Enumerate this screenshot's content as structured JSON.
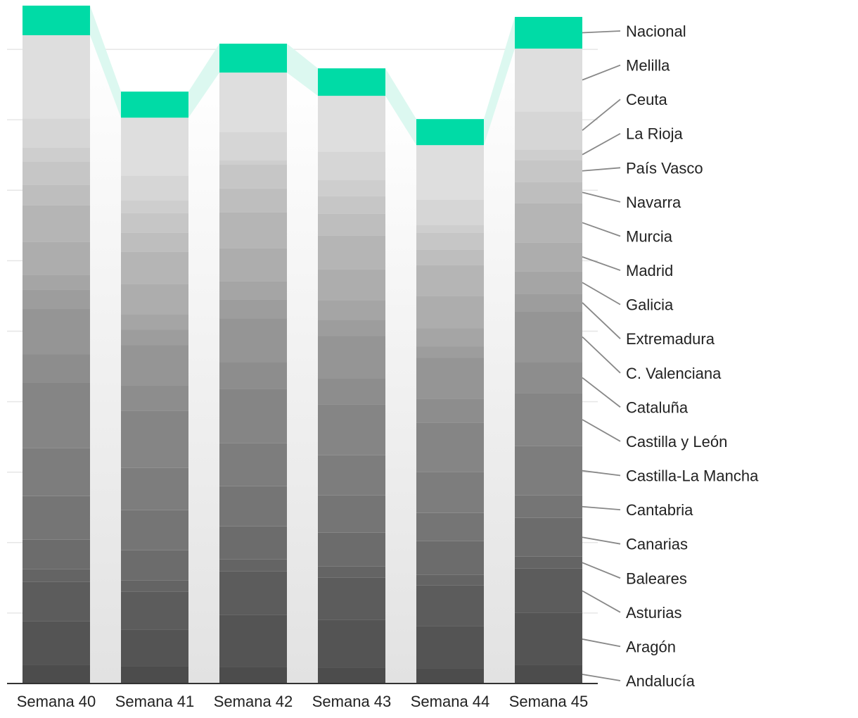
{
  "chart_data": {
    "type": "bar",
    "stacked": true,
    "categories": [
      "Semana 40",
      "Semana 41",
      "Semana 42",
      "Semana 43",
      "Semana 44",
      "Semana 45"
    ],
    "series": [
      {
        "name": "Andalucía",
        "values": [
          26,
          24,
          23,
          22,
          21,
          26
        ]
      },
      {
        "name": "Aragón",
        "values": [
          62,
          52,
          74,
          68,
          60,
          74
        ]
      },
      {
        "name": "Asturias",
        "values": [
          56,
          54,
          62,
          60,
          58,
          63
        ]
      },
      {
        "name": "Baleares",
        "values": [
          18,
          16,
          17,
          16,
          15,
          17
        ]
      },
      {
        "name": "Canarias",
        "values": [
          42,
          43,
          47,
          48,
          48,
          55
        ]
      },
      {
        "name": "Cantabria",
        "values": [
          62,
          57,
          57,
          53,
          40,
          32
        ]
      },
      {
        "name": "Castilla-La Mancha",
        "values": [
          68,
          60,
          61,
          57,
          58,
          70
        ]
      },
      {
        "name": "Castilla y León",
        "values": [
          93,
          81,
          77,
          72,
          70,
          75
        ]
      },
      {
        "name": "Cataluña",
        "values": [
          40,
          36,
          38,
          37,
          34,
          44
        ]
      },
      {
        "name": "C. Valenciana",
        "values": [
          65,
          57,
          62,
          60,
          58,
          72
        ]
      },
      {
        "name": "Extremadura",
        "values": [
          27,
          22,
          27,
          23,
          16,
          25
        ]
      },
      {
        "name": "Galicia",
        "values": [
          21,
          22,
          26,
          28,
          26,
          32
        ]
      },
      {
        "name": "Madrid",
        "values": [
          47,
          43,
          47,
          44,
          46,
          41
        ]
      },
      {
        "name": "Murcia",
        "values": [
          52,
          46,
          51,
          48,
          44,
          56
        ]
      },
      {
        "name": "Navarra",
        "values": [
          29,
          27,
          34,
          31,
          22,
          30
        ]
      },
      {
        "name": "País Vasco",
        "values": [
          33,
          28,
          34,
          25,
          24,
          31
        ]
      },
      {
        "name": "La Rioja",
        "values": [
          20,
          18,
          6,
          23,
          11,
          15
        ]
      },
      {
        "name": "Ceuta",
        "values": [
          41,
          35,
          40,
          40,
          36,
          54
        ]
      },
      {
        "name": "Melilla",
        "values": [
          118,
          82,
          84,
          79,
          77,
          89
        ]
      },
      {
        "name": "Nacional",
        "values": [
          42,
          37,
          41,
          39,
          37,
          45
        ]
      }
    ],
    "xlabel": "",
    "ylabel": "",
    "ylim": [
      0,
      960
    ],
    "grid": true,
    "legend": "right, direct labels"
  },
  "colors": {
    "nacional": "#00dba6",
    "nacional_band": "#dcf8f0",
    "grid": "#e6e6e6",
    "axis": "#333333",
    "leader": "#888888",
    "bottom_stack": "#4c4c4c",
    "top_stack": "#dedede"
  }
}
